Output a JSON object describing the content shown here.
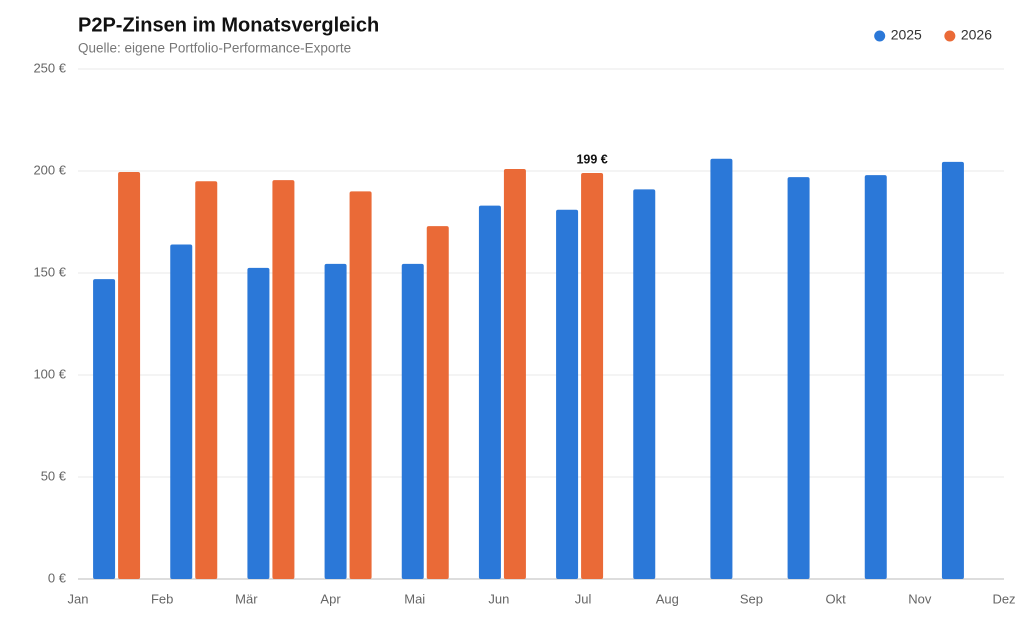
{
  "chart_data": {
    "type": "bar",
    "title": "P2P-Zinsen im Monatsvergleich",
    "subtitle": "Quelle: eigene Portfolio-Performance-Exporte",
    "categories": [
      "Jan",
      "Feb",
      "Mär",
      "Apr",
      "Mai",
      "Jun",
      "Jul",
      "Aug",
      "Sep",
      "Okt",
      "Nov",
      "Dez"
    ],
    "series": [
      {
        "name": "2025",
        "color": "#2b78d8",
        "values": [
          147,
          164,
          152.5,
          154.5,
          154.5,
          183,
          181,
          191,
          206,
          197,
          198,
          204.5
        ]
      },
      {
        "name": "2026",
        "color": "#ea6a37",
        "values": [
          199.5,
          195,
          195.5,
          190,
          173,
          201,
          199,
          null,
          null,
          null,
          null,
          null
        ],
        "value_labels": [
          null,
          null,
          null,
          null,
          null,
          null,
          "199 €",
          null,
          null,
          null,
          null,
          null
        ]
      }
    ],
    "ylim": [
      0,
      250
    ],
    "yticks": [
      {
        "value": 0,
        "label": "0 €"
      },
      {
        "value": 50,
        "label": "50 €"
      },
      {
        "value": 100,
        "label": "100 €"
      },
      {
        "value": 150,
        "label": "150 €"
      },
      {
        "value": 200,
        "label": "200 €"
      },
      {
        "value": 250,
        "label": "250 €"
      }
    ],
    "grid": true,
    "legend": "top-right"
  }
}
